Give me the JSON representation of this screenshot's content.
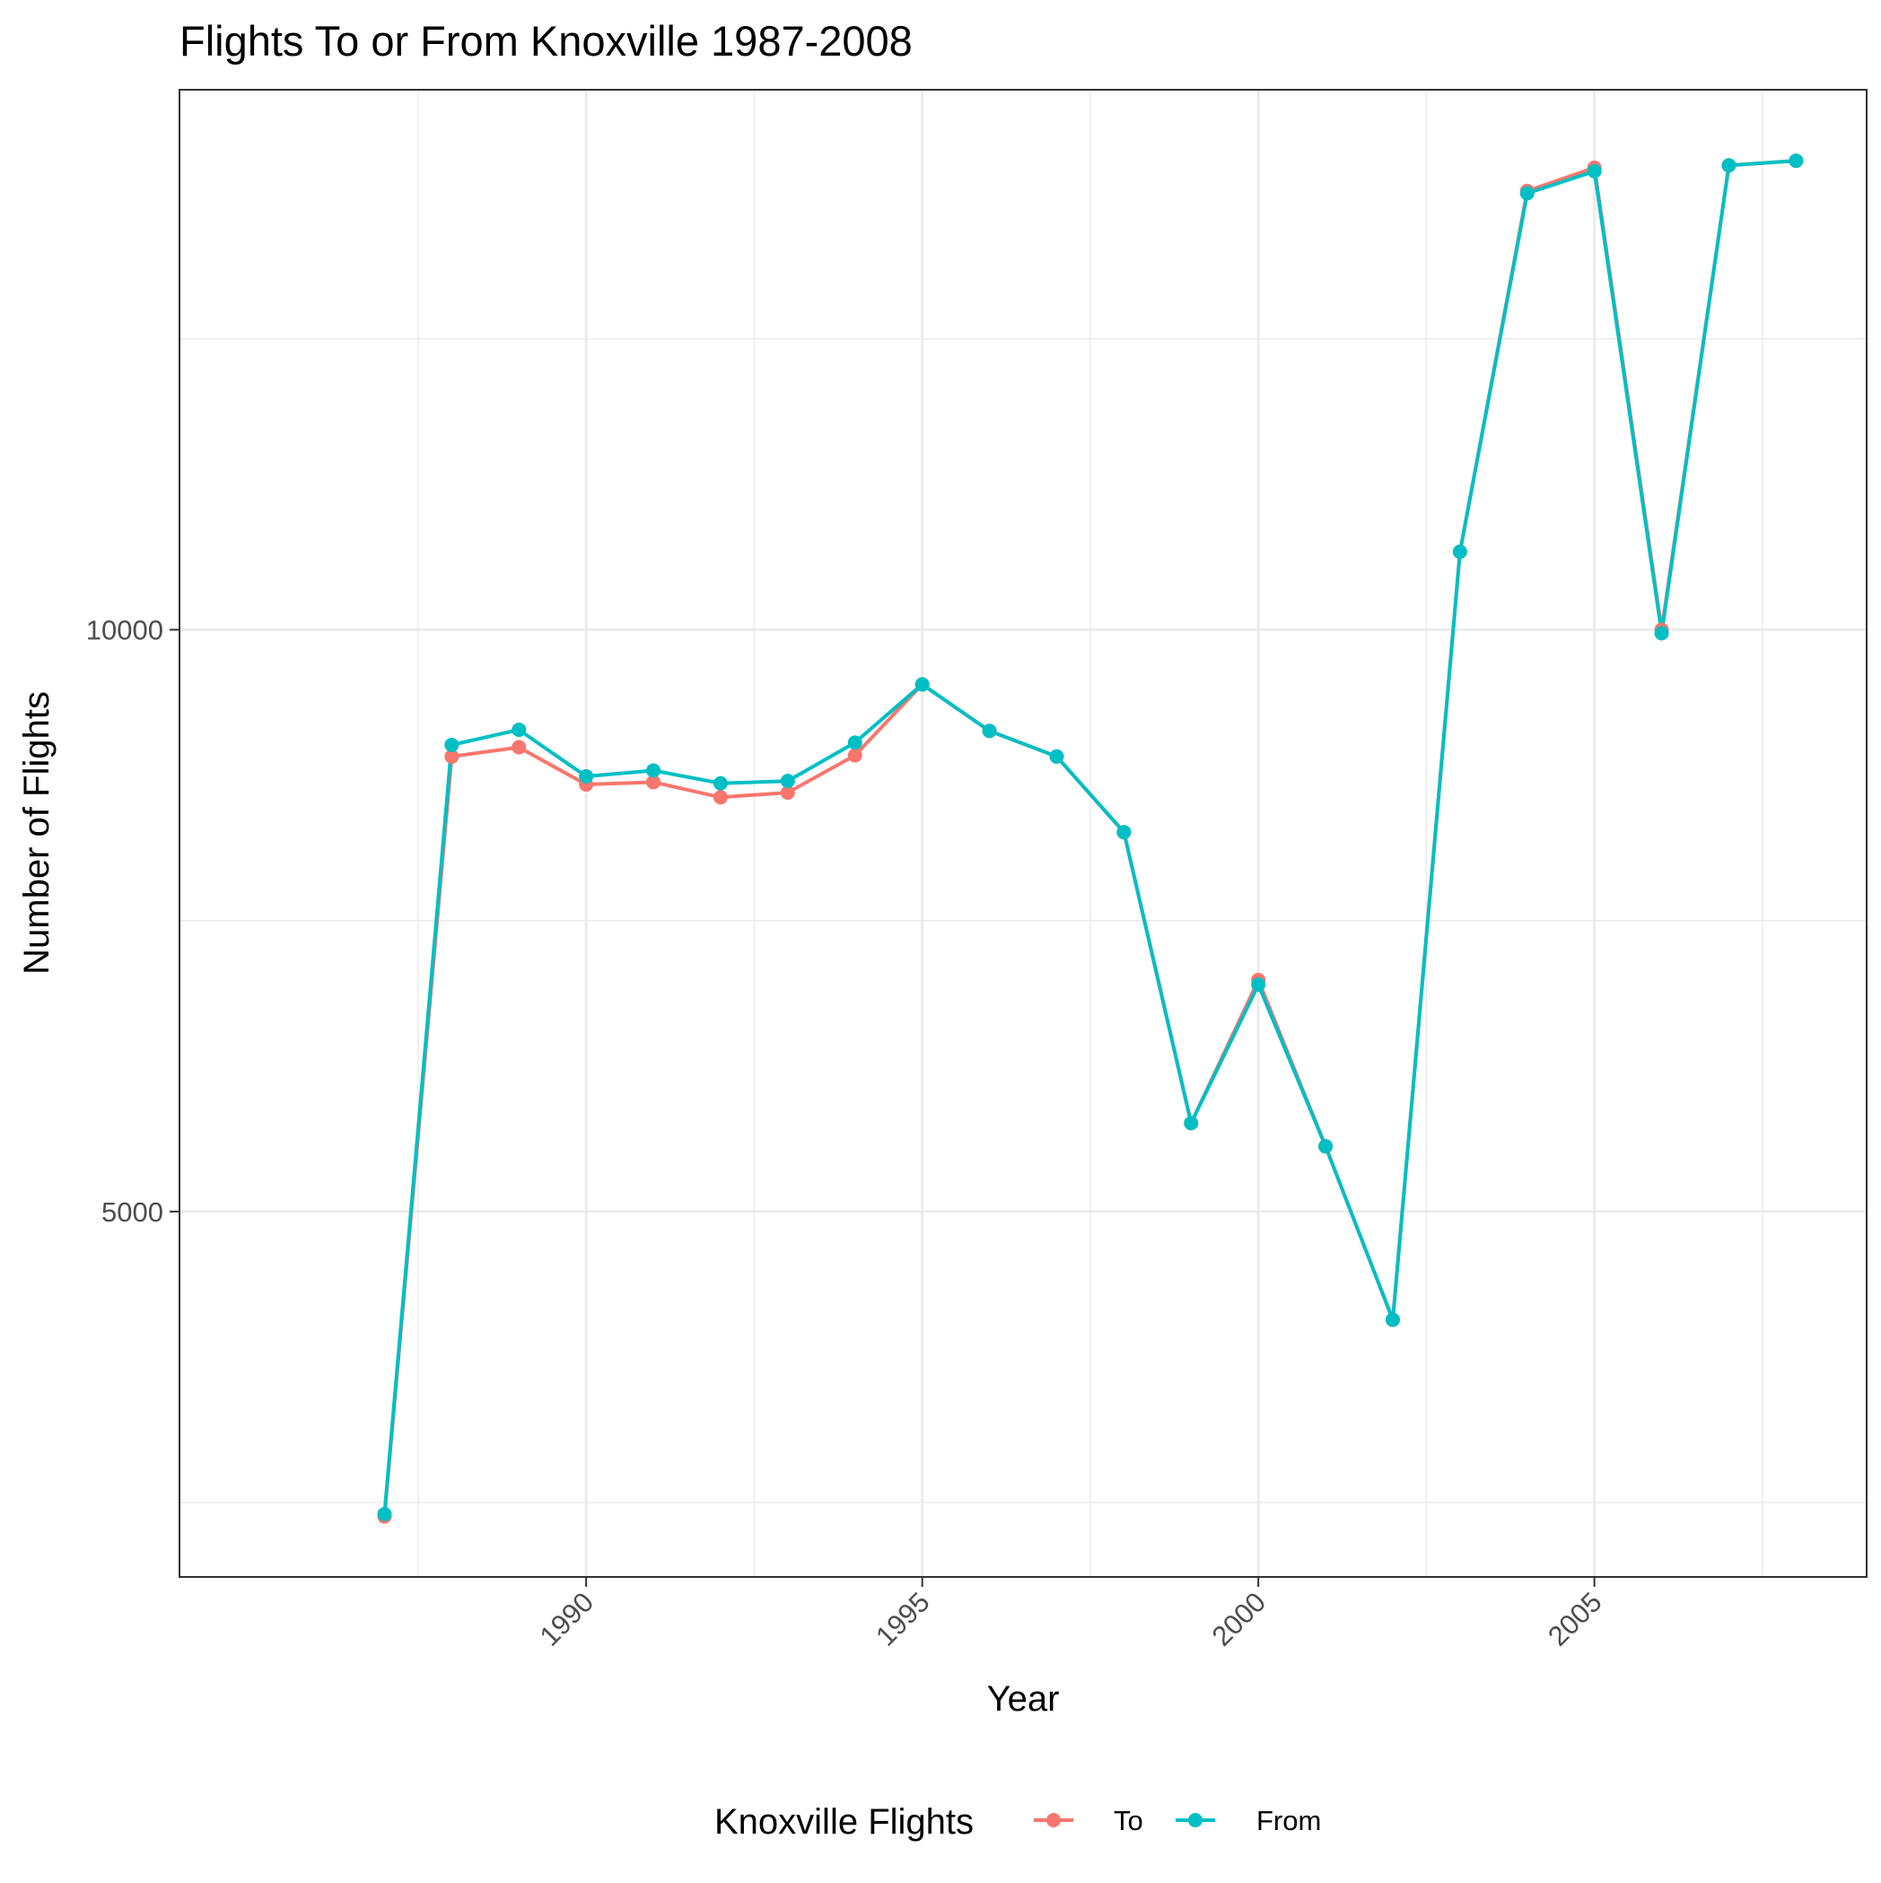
{
  "chart_data": {
    "type": "line",
    "title": "Flights To or From Knoxville 1987-2008",
    "xlabel": "Year",
    "ylabel": "Number of Flights",
    "x": [
      1987,
      1988,
      1989,
      1990,
      1991,
      1992,
      1993,
      1994,
      1995,
      1996,
      1997,
      1998,
      1999,
      2000,
      2001,
      2002,
      2003,
      2004,
      2005,
      2006,
      2007,
      2008
    ],
    "series": [
      {
        "name": "To",
        "color": "#F8766D",
        "values": [
          2380,
          8910,
          8990,
          8670,
          8690,
          8560,
          8600,
          8920,
          9530,
          9130,
          8910,
          8260,
          5760,
          6990,
          5560,
          4070,
          10670,
          13770,
          13970,
          10000,
          13990,
          14030
        ]
      },
      {
        "name": "From",
        "color": "#00BFC4",
        "values": [
          2400,
          9010,
          9140,
          8740,
          8790,
          8680,
          8700,
          9030,
          9530,
          9130,
          8910,
          8260,
          5760,
          6950,
          5560,
          4070,
          10670,
          13750,
          13940,
          9970,
          13990,
          14030
        ]
      }
    ],
    "xlim": [
      1983.95,
      2009.05
    ],
    "ylim": [
      1860,
      14640
    ],
    "x_ticks": [
      1990,
      1995,
      2000,
      2005
    ],
    "x_tick_labels": [
      "1990",
      "1995",
      "2000",
      "2005"
    ],
    "x_minor_ticks": [
      1987.5,
      1992.5,
      1997.5,
      2002.5,
      2007.5
    ],
    "y_ticks": [
      5000,
      10000
    ],
    "y_tick_labels": [
      "5000",
      "10000"
    ],
    "y_minor_ticks": [
      2500,
      7500,
      12500
    ],
    "grid": true,
    "legend": {
      "position": "bottom",
      "title": "Knoxville Flights",
      "entries": [
        "To",
        "From"
      ]
    }
  }
}
